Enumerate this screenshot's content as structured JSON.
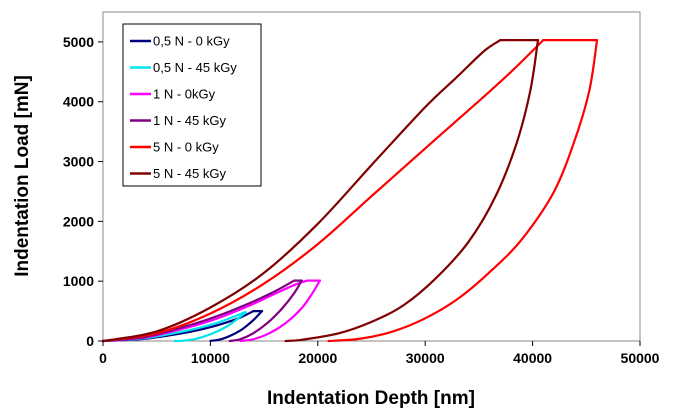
{
  "chart_data": {
    "type": "line",
    "title": "",
    "xlabel": "Indentation Depth [nm]",
    "ylabel": "Indentation Load [mN]",
    "xlim": [
      0,
      50000
    ],
    "ylim": [
      0,
      5500
    ],
    "x_ticks": [
      0,
      10000,
      20000,
      30000,
      40000,
      50000
    ],
    "y_ticks": [
      0,
      1000,
      2000,
      3000,
      4000,
      5000
    ],
    "x_tick_labels": [
      "0",
      "10000",
      "20000",
      "30000",
      "40000",
      "50000"
    ],
    "y_tick_labels": [
      "0",
      "1000",
      "2000",
      "3000",
      "4000",
      "5000"
    ],
    "grid": false,
    "legend_position": "top-left",
    "series": [
      {
        "name": "0,5 N - 0 kGy",
        "color": "#000080",
        "loading": {
          "x": [
            0,
            4000,
            8000,
            10000,
            12000,
            13000,
            14000
          ],
          "y": [
            0,
            40,
            150,
            230,
            340,
            410,
            500
          ]
        },
        "hold": {
          "x": [
            14000,
            14800
          ],
          "y": [
            500,
            500
          ]
        },
        "unloading": {
          "x": [
            14800,
            14000,
            13000,
            12000,
            11000,
            10000
          ],
          "y": [
            500,
            350,
            200,
            100,
            30,
            0
          ]
        }
      },
      {
        "name": "0,5 N - 45 kGy",
        "color": "#00e5ee",
        "loading": {
          "x": [
            0,
            4000,
            8000,
            10000,
            11500,
            12500,
            13200
          ],
          "y": [
            0,
            50,
            180,
            270,
            360,
            430,
            480
          ]
        },
        "hold": {
          "x": [
            13200,
            13300
          ],
          "y": [
            480,
            480
          ]
        },
        "unloading": {
          "x": [
            13300,
            12600,
            11600,
            10500,
            9500,
            8500,
            7500,
            6700
          ],
          "y": [
            480,
            380,
            250,
            150,
            80,
            30,
            5,
            0
          ]
        }
      },
      {
        "name": "1 N - 0kGy",
        "color": "#ff00ff",
        "loading": {
          "x": [
            0,
            4000,
            8000,
            11000,
            14000,
            16000,
            18000,
            19000
          ],
          "y": [
            0,
            60,
            230,
            400,
            620,
            790,
            950,
            1010
          ]
        },
        "hold": {
          "x": [
            19000,
            20200
          ],
          "y": [
            1010,
            1010
          ]
        },
        "unloading": {
          "x": [
            20200,
            19500,
            18500,
            17000,
            15500,
            14000,
            12800
          ],
          "y": [
            1010,
            800,
            550,
            300,
            130,
            30,
            0
          ]
        }
      },
      {
        "name": "1 N - 45 kGy",
        "color": "#800080",
        "loading": {
          "x": [
            0,
            4000,
            8000,
            11000,
            14000,
            16000,
            17800
          ],
          "y": [
            0,
            70,
            260,
            440,
            660,
            830,
            1010
          ]
        },
        "hold": {
          "x": [
            17800,
            18500
          ],
          "y": [
            1010,
            1010
          ]
        },
        "unloading": {
          "x": [
            18500,
            17800,
            16700,
            15300,
            14000,
            12800,
            11800
          ],
          "y": [
            1010,
            800,
            550,
            300,
            130,
            30,
            0
          ]
        }
      },
      {
        "name": "5 N - 0 kGy",
        "color": "#ff0000",
        "loading": {
          "x": [
            0,
            5000,
            10000,
            15000,
            20000,
            25000,
            30000,
            35000,
            38000,
            41000
          ],
          "y": [
            0,
            130,
            460,
            960,
            1620,
            2420,
            3220,
            4010,
            4500,
            5030
          ]
        },
        "hold": {
          "x": [
            41000,
            46000
          ],
          "y": [
            5030,
            5030
          ]
        },
        "unloading": {
          "x": [
            46000,
            45300,
            44000,
            42000,
            39000,
            36000,
            33000,
            30000,
            27000,
            24000,
            21000
          ],
          "y": [
            5030,
            4200,
            3400,
            2500,
            1700,
            1150,
            700,
            380,
            160,
            40,
            0
          ]
        }
      },
      {
        "name": "5 N - 45 kGy",
        "color": "#800000",
        "loading": {
          "x": [
            0,
            5000,
            10000,
            15000,
            20000,
            25000,
            30000,
            33000,
            35500,
            37000
          ],
          "y": [
            0,
            160,
            560,
            1140,
            1960,
            2940,
            3910,
            4420,
            4850,
            5030
          ]
        },
        "hold": {
          "x": [
            37000,
            40500
          ],
          "y": [
            5030,
            5030
          ]
        },
        "unloading": {
          "x": [
            40500,
            39800,
            38500,
            36500,
            34000,
            31000,
            28000,
            25000,
            22000,
            18500,
            17000
          ],
          "y": [
            5030,
            4200,
            3300,
            2400,
            1650,
            1050,
            600,
            320,
            130,
            20,
            0
          ]
        }
      }
    ]
  }
}
